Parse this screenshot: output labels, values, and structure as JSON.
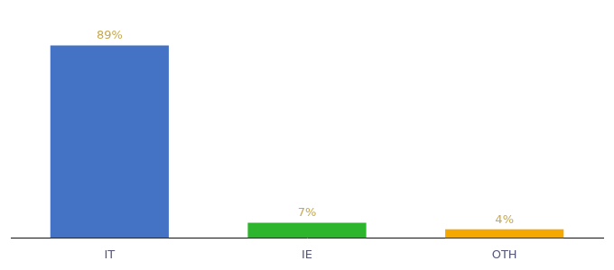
{
  "chart_data": {
    "type": "bar",
    "categories": [
      "IT",
      "IE",
      "OTH"
    ],
    "values": [
      89,
      7,
      4
    ],
    "value_labels": [
      "89%",
      "7%",
      "4%"
    ],
    "colors": [
      "#4472c4",
      "#2db52d",
      "#f5a800"
    ],
    "ylim": [
      0,
      100
    ],
    "grid": false,
    "legend": false,
    "data_labels": true,
    "tick_labels": "x"
  }
}
